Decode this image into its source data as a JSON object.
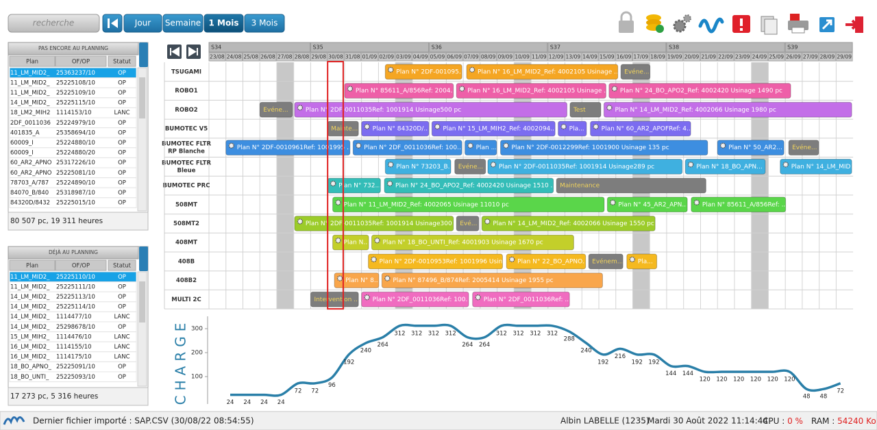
{
  "toolbar": {
    "search_placeholder": "recherche",
    "buttons": [
      "Jour",
      "Semaine",
      "1 Mois",
      "3 Mois"
    ]
  },
  "panels": [
    {
      "title": "PAS ENCORE AU PLANNING",
      "columns": [
        "Plan",
        "OF/OP",
        "Statut"
      ],
      "rows": [
        [
          "11_LM_MID2_",
          "25363237/10",
          "OP"
        ],
        [
          "11_LM_MID2_",
          "25225108/10",
          "OP"
        ],
        [
          "11_LM_MID2_",
          "25225109/10",
          "OP"
        ],
        [
          "14_LM_MID2_",
          "25225115/10",
          "OP"
        ],
        [
          "18_LM2_MIH2",
          "1114153/10",
          "LANC"
        ],
        [
          "2DF_0011036",
          "25224979/10",
          "OP"
        ],
        [
          "401835_A",
          "25358694/10",
          "OP"
        ],
        [
          "60009_I",
          "25224880/10",
          "OP"
        ],
        [
          "60009_I",
          "25224880/20",
          "OP"
        ],
        [
          "60_AR2_APNO",
          "25317226/10",
          "OP"
        ],
        [
          "60_AR2_APNO",
          "25225081/10",
          "OP"
        ],
        [
          "78703_A/787",
          "25224890/10",
          "OP"
        ],
        [
          "84070_B/840",
          "25318987/10",
          "OP"
        ],
        [
          "84320D/8432",
          "25225015/10",
          "OP"
        ]
      ],
      "footer": "80 507 pc, 19 311 heures"
    },
    {
      "title": "DÉJÀ AU PLANNING",
      "columns": [
        "Plan",
        "OF/OP",
        "Statut"
      ],
      "rows": [
        [
          "11_LM_MID2_",
          "25225110/10",
          "OP"
        ],
        [
          "11_LM_MID2_",
          "25225111/10",
          "OP"
        ],
        [
          "14_LM_MID2_",
          "25225113/10",
          "OP"
        ],
        [
          "14_LM_MID2_",
          "25225114/10",
          "OP"
        ],
        [
          "14_LM_MID2_",
          "1114477/10",
          "LANC"
        ],
        [
          "14_LM_MID2_",
          "25298678/10",
          "OP"
        ],
        [
          "15_LM_MIH2_",
          "1114476/10",
          "LANC"
        ],
        [
          "16_LM_MID2_",
          "1114155/10",
          "LANC"
        ],
        [
          "16_LM_MID2_",
          "1114175/10",
          "LANC"
        ],
        [
          "18_BO_APNO_",
          "25225091/10",
          "OP"
        ],
        [
          "18_BO_UNTI_",
          "25225093/10",
          "OP"
        ]
      ],
      "footer": "17 273 pc, 5 316 heures"
    }
  ],
  "gantt": {
    "weeks": [
      "S34",
      "S35",
      "S36",
      "S37",
      "S38",
      "S39"
    ],
    "days": [
      "23/08",
      "24/08",
      "25/08",
      "26/08",
      "27/08",
      "28/08",
      "29/08",
      "30/08",
      "31/08",
      "01/09",
      "02/09",
      "03/09",
      "04/09",
      "05/09",
      "06/09",
      "07/09",
      "08/09",
      "09/09",
      "10/09",
      "11/09",
      "12/09",
      "13/09",
      "14/09",
      "15/09",
      "16/09",
      "17/09",
      "18/09",
      "19/09",
      "20/09",
      "21/09",
      "22/09",
      "23/09",
      "24/09",
      "25/09",
      "26/09",
      "27/09",
      "28/09",
      "29/09"
    ],
    "resources": [
      {
        "name": [
          "TSUGAMI"
        ],
        "bars": [
          {
            "label": "Plan N° 2DF-001095...",
            "color": "#f5a623",
            "start": 10.4,
            "end": 15.0
          },
          {
            "label": "Plan N° 16_LM_MID2_Ref: 4002105 Usinage ...",
            "color": "#f5a623",
            "start": 15.2,
            "end": 24.2
          },
          {
            "label": "Evéne...",
            "color": "#7d7d7d",
            "text_color": "#f2d45c",
            "start": 24.3,
            "end": 26.1
          }
        ]
      },
      {
        "name": [
          "ROBO1"
        ],
        "bars": [
          {
            "label": "Plan N° 85611_A/856Ref: 2004...",
            "color": "#ee5fa8",
            "start": 8.0,
            "end": 14.5
          },
          {
            "label": "Plan N° 16_LM_MID2_Ref: 4002105 Usinage ...",
            "color": "#ee5fa8",
            "start": 14.6,
            "end": 23.5
          },
          {
            "label": "Plan N° 24_BO_APO2_Ref: 4002420 Usinage 1490 pc",
            "color": "#ee5fa8",
            "start": 23.6,
            "end": 34.4
          }
        ]
      },
      {
        "name": [
          "ROBO2"
        ],
        "bars": [
          {
            "label": "Evéne...",
            "color": "#7d7d7d",
            "text_color": "#f2d45c",
            "start": 3.0,
            "end": 5.0
          },
          {
            "label": "Plan N° 2DF-0011035Ref: 1001914 Usinage500 pc",
            "color": "#c36ee8",
            "start": 5.05,
            "end": 21.2
          },
          {
            "label": "Test",
            "color": "#7d7d7d",
            "text_color": "#f2d45c",
            "start": 21.3,
            "end": 23.2
          },
          {
            "label": "Plan N° 14_LM_MID2_Ref: 4002066 Usinage 1980 pc",
            "color": "#c36ee8",
            "start": 23.3,
            "end": 38
          }
        ]
      },
      {
        "name": [
          "BUMOTEC V5"
        ],
        "bars": [
          {
            "label": "Mainte...",
            "color": "#7d7d7d",
            "text_color": "#f2d45c",
            "start": 7.0,
            "end": 8.9
          },
          {
            "label": "Plan N° 84320D/...",
            "color": "#7b6cf0",
            "start": 9.0,
            "end": 13.05
          },
          {
            "label": "Plan N° 15_LM_MIH2_Ref: 4002094...",
            "color": "#7b6cf0",
            "start": 13.15,
            "end": 20.5
          },
          {
            "label": "Pla...",
            "color": "#7b6cf0",
            "start": 20.6,
            "end": 22.35
          },
          {
            "label": "Plan N° 60_AR2_APOFRef: 4...",
            "color": "#7b6cf0",
            "start": 22.5,
            "end": 28.5
          }
        ]
      },
      {
        "name": [
          "BUMOTEC FLTR",
          "RP Blanche"
        ],
        "bars": [
          {
            "label": "Plan N° 2DF-0010961Ref: 1001995 ...",
            "color": "#3d8ee0",
            "start": 1.0,
            "end": 8.4
          },
          {
            "label": "Plan N° 2DF_0011036Ref: 100...",
            "color": "#3d8ee0",
            "start": 8.5,
            "end": 15.0
          },
          {
            "label": "Plan ...",
            "color": "#3d8ee0",
            "start": 15.1,
            "end": 17.05
          },
          {
            "label": "Plan N° 2DF-0012299Ref: 1001900 Usinage 135 pc",
            "color": "#3d8ee0",
            "start": 17.2,
            "end": 29.5
          },
          {
            "label": "Plan N° 50_AR2...",
            "color": "#3d8ee0",
            "start": 30.0,
            "end": 34.0
          },
          {
            "label": "Evéne...",
            "color": "#7d7d7d",
            "text_color": "#f2d45c",
            "start": 34.2,
            "end": 36.05
          }
        ]
      },
      {
        "name": [
          "BUMOTEC FLTR",
          "Bleue"
        ],
        "bars": [
          {
            "label": "Plan N° 73203_B...",
            "color": "#3fb0e0",
            "start": 10.4,
            "end": 14.35
          },
          {
            "label": "Evéne...",
            "color": "#7d7d7d",
            "text_color": "#f2d45c",
            "start": 14.5,
            "end": 16.4
          },
          {
            "label": "Plan N° 2DF-0011035Ref: 1001914 Usinage289 pc",
            "color": "#3fb0e0",
            "start": 16.45,
            "end": 28.0
          },
          {
            "label": "Plan N° 18_BO_APN...",
            "color": "#3fb0e0",
            "start": 28.1,
            "end": 32.9
          },
          {
            "label": "Plan N° 14_LM_MID2...",
            "color": "#3fb0e0",
            "start": 33.7,
            "end": 38
          }
        ]
      },
      {
        "name": [
          "BUMOTEC PRC"
        ],
        "bars": [
          {
            "label": "Plan N° 732...",
            "color": "#34bdb8",
            "start": 7.0,
            "end": 10.2
          },
          {
            "label": "Plan N° 24_BO_APO2_Ref: 4002420 Usinage 1510 ...",
            "color": "#34bdb8",
            "start": 10.35,
            "end": 20.4
          },
          {
            "label": "Maintenance",
            "color": "#7d7d7d",
            "text_color": "#f2d45c",
            "start": 20.5,
            "end": 29.4
          }
        ]
      },
      {
        "name": [
          "508MT"
        ],
        "bars": [
          {
            "label": "Plan N° 11_LM_MID2_Ref: 4002065 Usinage 11010 pc",
            "color": "#5ad64a",
            "start": 7.3,
            "end": 23.4
          },
          {
            "label": "Plan N° 45_AR2_APN...",
            "color": "#5ad64a",
            "start": 23.5,
            "end": 28.3
          },
          {
            "label": "Plan N° 85611_A/856Ref: ...",
            "color": "#5ad64a",
            "start": 28.45,
            "end": 34.1
          }
        ]
      },
      {
        "name": [
          "508MT2"
        ],
        "bars": [
          {
            "label": "Plan N° 2DF-0011035Ref: 1001914 Usinage300 ...",
            "color": "#9ccc2a",
            "start": 5.05,
            "end": 14.5
          },
          {
            "label": "Evé...",
            "color": "#7d7d7d",
            "text_color": "#f2d45c",
            "start": 14.6,
            "end": 16.0
          },
          {
            "label": "Plan N° 14_LM_MID2_Ref: 4002066 Usinage 1550 pc",
            "color": "#9ccc2a",
            "start": 16.1,
            "end": 26.4
          }
        ]
      },
      {
        "name": [
          "408MT"
        ],
        "bars": [
          {
            "label": "Plan N...",
            "color": "#c3cf2a",
            "start": 7.3,
            "end": 9.5
          },
          {
            "label": "Plan N° 18_BO_UNTI_Ref: 4001903 Usinage 1670 pc",
            "color": "#c3cf2a",
            "start": 9.6,
            "end": 21.6
          }
        ]
      },
      {
        "name": [
          "408B"
        ],
        "bars": [
          {
            "label": "Plan N° 2DF-0010953Ref: 1001996 Usin...",
            "color": "#f5b91f",
            "start": 9.4,
            "end": 17.4
          },
          {
            "label": "Plan N° 22_BO_APNO...",
            "color": "#f5b91f",
            "start": 17.55,
            "end": 22.3
          },
          {
            "label": "Evénem...",
            "color": "#7d7d7d",
            "text_color": "#f2d45c",
            "start": 22.4,
            "end": 24.5
          },
          {
            "label": "Pla...",
            "color": "#f5b91f",
            "start": 24.65,
            "end": 26.5
          }
        ]
      },
      {
        "name": [
          "408B2"
        ],
        "bars": [
          {
            "label": "Plan N° 8...",
            "color": "#f9a64b",
            "start": 7.4,
            "end": 10.1
          },
          {
            "label": "Plan N° 87496_B/874Ref: 2005414 Usinage 1955 pc",
            "color": "#f9a64b",
            "start": 10.2,
            "end": 23.3
          }
        ]
      },
      {
        "name": [
          "MULTI 2C"
        ],
        "bars": [
          {
            "label": "Intervention ...",
            "color": "#7d7d7d",
            "text_color": "#f2d45c",
            "start": 6.0,
            "end": 8.9
          },
          {
            "label": "Plan N° 2DF_0011036Ref: 100...",
            "color": "#f06cc0",
            "start": 9.0,
            "end": 15.4
          },
          {
            "label": "Plan N° 2DF_0011036Ref: ...",
            "color": "#f06cc0",
            "start": 15.55,
            "end": 21.35
          }
        ]
      }
    ]
  },
  "chart_data": {
    "type": "line",
    "title": "CHARGE",
    "color": "#2a7fa8",
    "values": [
      24,
      24,
      24,
      24,
      72,
      72,
      96,
      192,
      240,
      264,
      312,
      312,
      312,
      312,
      264,
      264,
      312,
      312,
      312,
      312,
      288,
      240,
      192,
      216,
      192,
      192,
      144,
      144,
      120,
      120,
      120,
      120,
      120,
      120,
      48,
      48,
      72
    ],
    "ylim": [
      0,
      340
    ],
    "yticks": [
      100,
      200,
      300
    ]
  },
  "status": {
    "file": "Dernier fichier importé : SAP.CSV (30/08/22 08:54:55)",
    "user": "Albin LABELLE (1235)",
    "datetime": "Mardi 30 Août 2022 11:14:44",
    "cpu_label": "CPU : ",
    "cpu_value": "0 %",
    "ram_label": "RAM : ",
    "ram_value": "54240 Ko"
  }
}
